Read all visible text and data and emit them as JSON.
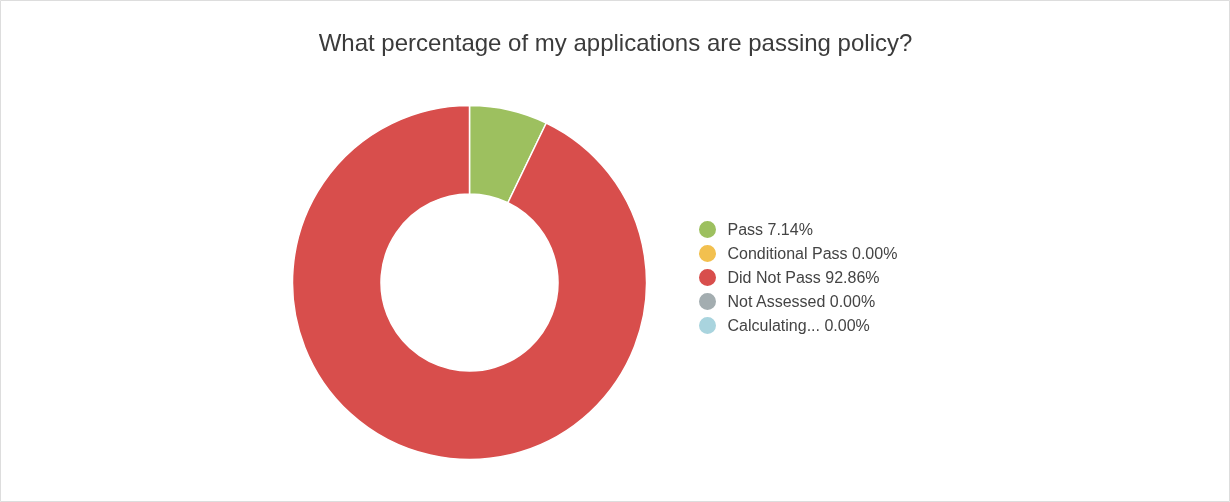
{
  "chart_data": {
    "type": "donut",
    "title": "What percentage of my applications are passing policy?",
    "categories": [
      "Pass",
      "Conditional Pass",
      "Did Not Pass",
      "Not Assessed",
      "Calculating..."
    ],
    "values": [
      7.14,
      0,
      92.86,
      0,
      0
    ],
    "value_labels": [
      "7.14%",
      "0.00%",
      "92.86%",
      "0.00%",
      "0.00%"
    ],
    "colors": [
      "#9dc05f",
      "#f2c04f",
      "#d84e4c",
      "#a3adb0",
      "#a9d4de"
    ],
    "legend": "right"
  }
}
